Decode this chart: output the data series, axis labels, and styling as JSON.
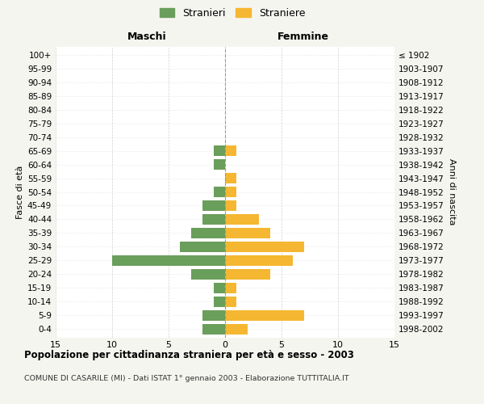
{
  "age_groups": [
    "0-4",
    "5-9",
    "10-14",
    "15-19",
    "20-24",
    "25-29",
    "30-34",
    "35-39",
    "40-44",
    "45-49",
    "50-54",
    "55-59",
    "60-64",
    "65-69",
    "70-74",
    "75-79",
    "80-84",
    "85-89",
    "90-94",
    "95-99",
    "100+"
  ],
  "birth_years": [
    "1998-2002",
    "1993-1997",
    "1988-1992",
    "1983-1987",
    "1978-1982",
    "1973-1977",
    "1968-1972",
    "1963-1967",
    "1958-1962",
    "1953-1957",
    "1948-1952",
    "1943-1947",
    "1938-1942",
    "1933-1937",
    "1928-1932",
    "1923-1927",
    "1918-1922",
    "1913-1917",
    "1908-1912",
    "1903-1907",
    "≤ 1902"
  ],
  "males": [
    2,
    2,
    1,
    1,
    3,
    10,
    4,
    3,
    2,
    2,
    1,
    0,
    1,
    1,
    0,
    0,
    0,
    0,
    0,
    0,
    0
  ],
  "females": [
    2,
    7,
    1,
    1,
    4,
    6,
    7,
    4,
    3,
    1,
    1,
    1,
    0,
    1,
    0,
    0,
    0,
    0,
    0,
    0,
    0
  ],
  "male_color": "#6a9e5b",
  "female_color": "#f5b731",
  "title": "Popolazione per cittadinanza straniera per età e sesso - 2003",
  "subtitle": "COMUNE DI CASARILE (MI) - Dati ISTAT 1° gennaio 2003 - Elaborazione TUTTITALIA.IT",
  "xlabel_left": "Maschi",
  "xlabel_right": "Femmine",
  "ylabel_left": "Fasce di età",
  "ylabel_right": "Anni di nascita",
  "legend_male": "Stranieri",
  "legend_female": "Straniere",
  "xlim": 15,
  "background_color": "#f5f5f0",
  "plot_background": "#ffffff",
  "grid_color": "#cccccc"
}
